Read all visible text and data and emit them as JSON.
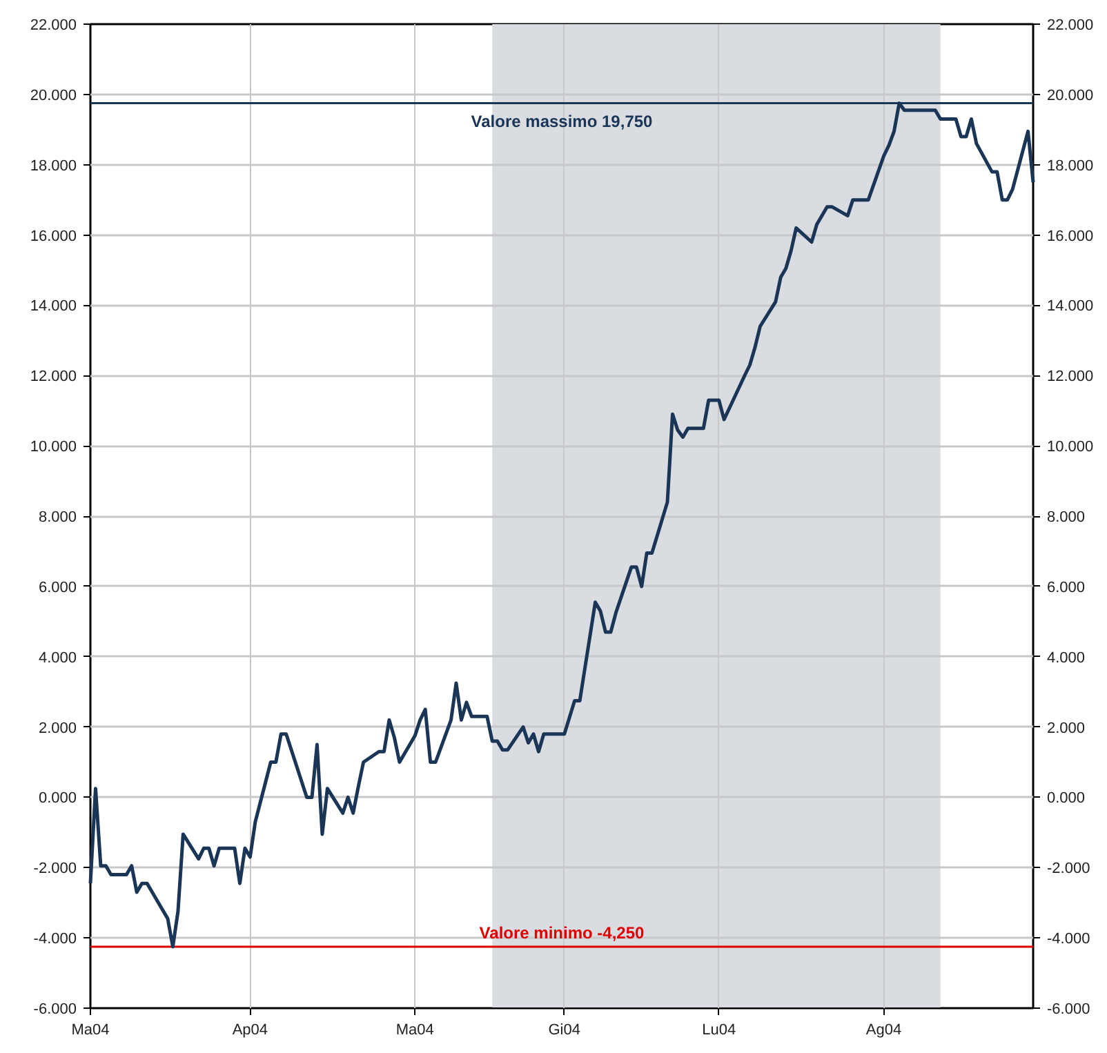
{
  "chart_data": {
    "type": "line",
    "x": [
      "2004-03-01",
      "2004-03-02",
      "2004-03-03",
      "2004-03-04",
      "2004-03-05",
      "2004-03-08",
      "2004-03-09",
      "2004-03-10",
      "2004-03-11",
      "2004-03-12",
      "2004-03-15",
      "2004-03-16",
      "2004-03-17",
      "2004-03-18",
      "2004-03-19",
      "2004-03-22",
      "2004-03-23",
      "2004-03-24",
      "2004-03-25",
      "2004-03-26",
      "2004-03-29",
      "2004-03-30",
      "2004-03-31",
      "2004-04-01",
      "2004-04-02",
      "2004-04-05",
      "2004-04-06",
      "2004-04-07",
      "2004-04-08",
      "2004-04-12",
      "2004-04-13",
      "2004-04-14",
      "2004-04-15",
      "2004-04-16",
      "2004-04-19",
      "2004-04-20",
      "2004-04-21",
      "2004-04-22",
      "2004-04-23",
      "2004-04-26",
      "2004-04-27",
      "2004-04-28",
      "2004-04-29",
      "2004-04-30",
      "2004-05-03",
      "2004-05-04",
      "2004-05-05",
      "2004-05-06",
      "2004-05-07",
      "2004-05-10",
      "2004-05-11",
      "2004-05-12",
      "2004-05-13",
      "2004-05-14",
      "2004-05-17",
      "2004-05-18",
      "2004-05-19",
      "2004-05-20",
      "2004-05-21",
      "2004-05-24",
      "2004-05-25",
      "2004-05-26",
      "2004-05-27",
      "2004-05-28",
      "2004-06-01",
      "2004-06-03",
      "2004-06-04",
      "2004-06-07",
      "2004-06-08",
      "2004-06-09",
      "2004-06-10",
      "2004-06-11",
      "2004-06-14",
      "2004-06-15",
      "2004-06-16",
      "2004-06-17",
      "2004-06-18",
      "2004-06-21",
      "2004-06-22",
      "2004-06-23",
      "2004-06-24",
      "2004-06-25",
      "2004-06-28",
      "2004-06-29",
      "2004-06-30",
      "2004-07-01",
      "2004-07-02",
      "2004-07-06",
      "2004-07-07",
      "2004-07-08",
      "2004-07-09",
      "2004-07-12",
      "2004-07-13",
      "2004-07-14",
      "2004-07-15",
      "2004-07-16",
      "2004-07-19",
      "2004-07-20",
      "2004-07-21",
      "2004-07-22",
      "2004-07-23",
      "2004-07-26",
      "2004-07-27",
      "2004-07-28",
      "2004-07-29",
      "2004-07-30",
      "2004-08-02",
      "2004-08-03",
      "2004-08-04",
      "2004-08-05",
      "2004-08-06",
      "2004-08-09",
      "2004-08-10",
      "2004-08-11",
      "2004-08-12",
      "2004-08-13",
      "2004-08-16",
      "2004-08-17",
      "2004-08-18",
      "2004-08-19",
      "2004-08-20",
      "2004-08-23",
      "2004-08-24",
      "2004-08-25",
      "2004-08-26",
      "2004-08-27",
      "2004-08-30",
      "2004-08-31"
    ],
    "series": [
      {
        "color": "#1a3556",
        "values": [
          -2.45,
          0.25,
          -1.95,
          -1.95,
          -2.2,
          -2.2,
          -1.95,
          -2.7,
          -2.45,
          -2.45,
          -3.2,
          -3.45,
          -4.25,
          -3.25,
          -1.05,
          -1.75,
          -1.45,
          -1.45,
          -1.95,
          -1.45,
          -1.45,
          -2.45,
          -1.45,
          -1.7,
          -0.7,
          1.0,
          1.0,
          1.8,
          1.8,
          0.0,
          0.0,
          1.5,
          -1.05,
          0.25,
          -0.45,
          0.0,
          -0.45,
          0.3,
          1.0,
          1.3,
          1.3,
          2.2,
          1.7,
          1.0,
          1.75,
          2.2,
          2.5,
          1.0,
          1.0,
          2.2,
          3.25,
          2.2,
          2.7,
          2.3,
          2.3,
          1.6,
          1.6,
          1.35,
          1.35,
          2.0,
          1.55,
          1.8,
          1.3,
          1.8,
          1.8,
          2.75,
          2.75,
          5.55,
          5.3,
          4.7,
          4.7,
          5.25,
          6.55,
          6.55,
          6.0,
          6.95,
          6.95,
          8.4,
          10.9,
          10.45,
          10.25,
          10.5,
          10.5,
          11.3,
          11.3,
          11.3,
          10.75,
          12.0,
          12.3,
          12.8,
          13.4,
          14.1,
          14.8,
          15.05,
          15.55,
          16.2,
          15.8,
          16.3,
          16.55,
          16.8,
          16.8,
          16.55,
          17.0,
          17.0,
          17.0,
          17.0,
          18.25,
          18.55,
          18.95,
          19.75,
          19.55,
          19.55,
          19.55,
          19.55,
          19.55,
          19.3,
          19.3,
          18.8,
          18.8,
          19.3,
          18.6,
          17.8,
          17.8,
          17.0,
          17.0,
          17.3,
          18.95,
          17.5
        ]
      }
    ],
    "xlim": [
      "2004-03-01",
      "2004-08-31"
    ],
    "xticks": [
      {
        "value": "2004-03-01",
        "label": "Ma04"
      },
      {
        "value": "2004-04-01",
        "label": "Ap04"
      },
      {
        "value": "2004-05-03",
        "label": "Ma04"
      },
      {
        "value": "2004-06-01",
        "label": "Gi04"
      },
      {
        "value": "2004-07-01",
        "label": "Lu04"
      },
      {
        "value": "2004-08-02",
        "label": "Ag04"
      }
    ],
    "ylim": [
      -6,
      22
    ],
    "yticks": [
      {
        "value": -6,
        "label": "-6.000"
      },
      {
        "value": -4,
        "label": "-4.000"
      },
      {
        "value": -2,
        "label": "-2.000"
      },
      {
        "value": 0,
        "label": "0.000"
      },
      {
        "value": 2,
        "label": "2.000"
      },
      {
        "value": 4,
        "label": "4.000"
      },
      {
        "value": 6,
        "label": "6.000"
      },
      {
        "value": 8,
        "label": "8.000"
      },
      {
        "value": 10,
        "label": "10.000"
      },
      {
        "value": 12,
        "label": "12.000"
      },
      {
        "value": 14,
        "label": "14.000"
      },
      {
        "value": 16,
        "label": "16.000"
      },
      {
        "value": 18,
        "label": "18.000"
      },
      {
        "value": 20,
        "label": "20.000"
      },
      {
        "value": 22,
        "label": "22.000"
      }
    ],
    "y2lim": [
      -6,
      22
    ],
    "y2ticks": [
      {
        "value": -6,
        "label": "-6.000"
      },
      {
        "value": -4,
        "label": "-4.000"
      },
      {
        "value": -2,
        "label": "-2.000"
      },
      {
        "value": 0,
        "label": "0.000"
      },
      {
        "value": 2,
        "label": "2.000"
      },
      {
        "value": 4,
        "label": "4.000"
      },
      {
        "value": 6,
        "label": "6.000"
      },
      {
        "value": 8,
        "label": "8.000"
      },
      {
        "value": 10,
        "label": "10.000"
      },
      {
        "value": 12,
        "label": "12.000"
      },
      {
        "value": 14,
        "label": "14.000"
      },
      {
        "value": 16,
        "label": "16.000"
      },
      {
        "value": 18,
        "label": "18.000"
      },
      {
        "value": 20,
        "label": "20.000"
      },
      {
        "value": 22,
        "label": "22.000"
      }
    ],
    "ref_lines": [
      {
        "axis": "y",
        "value": 19.75,
        "label": "Valore massimo 19,750",
        "color": "#1a3556"
      },
      {
        "axis": "y",
        "value": -4.25,
        "label": "Valore minimo -4,250",
        "color": "#e00000"
      }
    ],
    "bands": [
      {
        "axis": "x",
        "from": "2004-05-18",
        "to": "2004-08-13",
        "color": "#d9dce1"
      }
    ],
    "grid": true,
    "marker": "none",
    "line_style": "solid"
  }
}
